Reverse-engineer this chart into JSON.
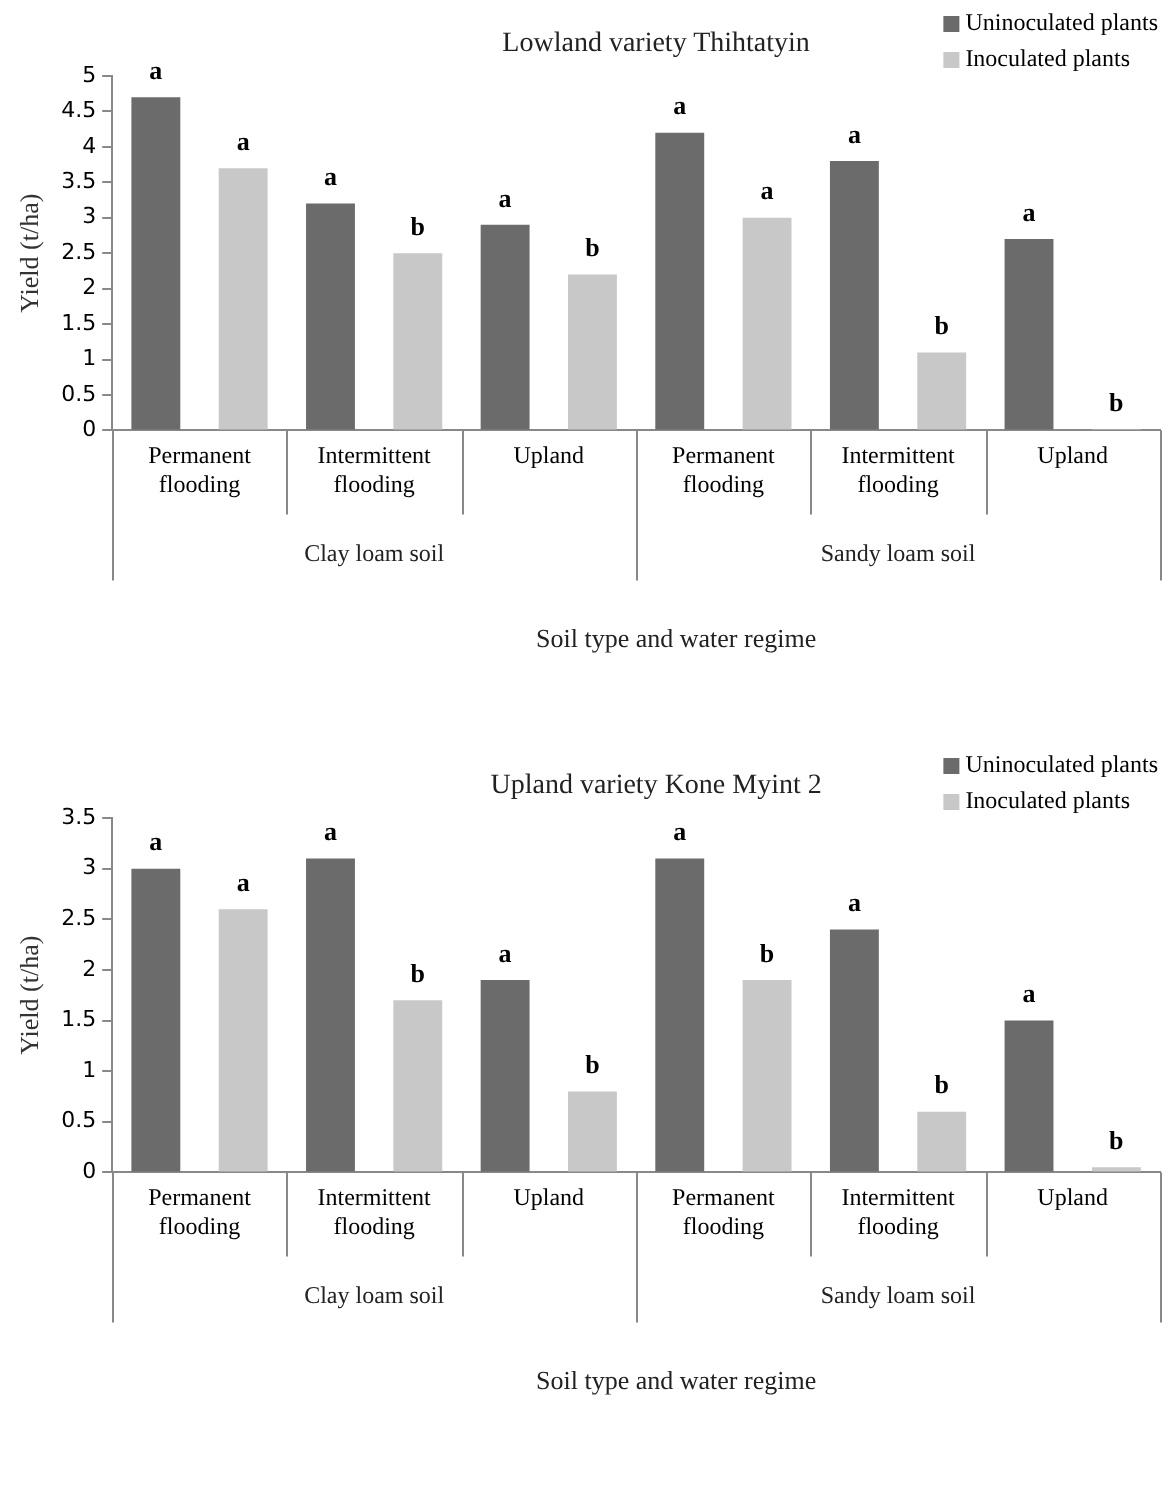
{
  "chart_data": [
    {
      "type": "bar",
      "title": "Lowland variety Thihtatyin",
      "xlabel": "Soil type and water regime",
      "ylabel": "Yield (t/ha)",
      "categories": [
        "Permanent flooding",
        "Intermittent flooding",
        "Upland",
        "Permanent flooding",
        "Intermittent flooding",
        "Upland"
      ],
      "series": [
        {
          "name": "Uninoculated plants",
          "color": "#6b6b6b",
          "values": [
            4.7,
            3.2,
            2.9,
            4.2,
            3.8,
            2.7
          ],
          "value_labels": [
            "a",
            "a",
            "a",
            "a",
            "a",
            "a"
          ]
        },
        {
          "name": "Inoculated plants",
          "color": "#c8c8c8",
          "values": [
            3.7,
            2.5,
            2.2,
            3.0,
            1.1,
            0.02
          ],
          "value_labels": [
            "a",
            "b",
            "b",
            "a",
            "b",
            "b"
          ]
        }
      ],
      "ylim": [
        0,
        5
      ],
      "yticks": [
        0,
        0.5,
        1,
        1.5,
        2,
        2.5,
        3,
        3.5,
        4,
        4.5,
        5
      ],
      "grid": false,
      "legend": "top right",
      "annotations": [
        "Clay loam soil",
        "Sandy loam soil"
      ]
    },
    {
      "type": "bar",
      "title": "Upland variety Kone Myint 2",
      "xlabel": "Soil type and water regime",
      "ylabel": "Yield (t/ha)",
      "categories": [
        "Permanent flooding",
        "Intermittent flooding",
        "Upland",
        "Permanent flooding",
        "Intermittent flooding",
        "Upland"
      ],
      "series": [
        {
          "name": "Uninoculated plants",
          "color": "#6b6b6b",
          "values": [
            3.0,
            3.1,
            1.9,
            3.1,
            2.4,
            1.5
          ],
          "value_labels": [
            "a",
            "a",
            "a",
            "a",
            "a",
            "a"
          ]
        },
        {
          "name": "Inoculated plants",
          "color": "#c8c8c8",
          "values": [
            2.6,
            1.7,
            0.8,
            1.9,
            0.6,
            0.05
          ],
          "value_labels": [
            "a",
            "b",
            "b",
            "b",
            "b",
            "b"
          ]
        }
      ],
      "ylim": [
        0,
        3.5
      ],
      "yticks": [
        0,
        0.5,
        1,
        1.5,
        2,
        2.5,
        3,
        3.5
      ],
      "grid": false,
      "legend": "top right",
      "annotations": [
        "Clay loam soil",
        "Sandy loam soil"
      ]
    }
  ]
}
